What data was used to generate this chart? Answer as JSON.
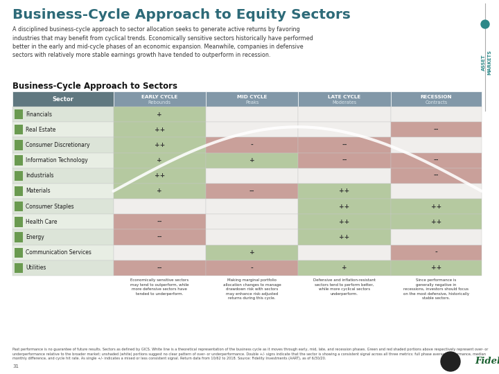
{
  "title": "Business-Cycle Approach to Equity Sectors",
  "subtitle": "A disciplined business-cycle approach to sector allocation seeks to generate active returns by favoring\nindustries that may benefit from cyclical trends. Economically sensitive sectors historically have performed\nbetter in the early and mid-cycle phases of an economic expansion. Meanwhile, companies in defensive\nsectors with relatively more stable earnings growth have tended to outperform in recession.",
  "table_title": "Business-Cycle Approach to Sectors",
  "col_headers_top": [
    "EARLY CYCLE",
    "MID CYCLE",
    "LATE CYCLE",
    "RECESSION"
  ],
  "col_headers_bot": [
    "Rebounds",
    "Peaks",
    "Moderates",
    "Contracts"
  ],
  "row_labels": [
    "Financials",
    "Real Estate",
    "Consumer Discretionary",
    "Information Technology",
    "Industrials",
    "Materials",
    "Consumer Staples",
    "Health Care",
    "Energy",
    "Communication Services",
    "Utilities"
  ],
  "data": [
    [
      "+",
      "",
      "",
      ""
    ],
    [
      "++",
      "",
      "",
      "--"
    ],
    [
      "++",
      "-",
      "--",
      ""
    ],
    [
      "+",
      "+",
      "--",
      "--"
    ],
    [
      "++",
      "",
      "",
      "--"
    ],
    [
      "+",
      "--",
      "++",
      ""
    ],
    [
      "",
      "",
      "++",
      "++"
    ],
    [
      "--",
      "",
      "++",
      "++"
    ],
    [
      "--",
      "",
      "++",
      ""
    ],
    [
      "",
      "+",
      "",
      "-"
    ],
    [
      "--",
      "-",
      "+",
      "++"
    ]
  ],
  "cell_colors": [
    [
      "green",
      "white",
      "white",
      "white"
    ],
    [
      "green",
      "white",
      "white",
      "red"
    ],
    [
      "green",
      "red",
      "red",
      "white"
    ],
    [
      "green",
      "green",
      "red",
      "red"
    ],
    [
      "green",
      "white",
      "white",
      "red"
    ],
    [
      "green",
      "red",
      "green",
      "white"
    ],
    [
      "white",
      "white",
      "green",
      "green"
    ],
    [
      "red",
      "white",
      "green",
      "green"
    ],
    [
      "red",
      "white",
      "green",
      "white"
    ],
    [
      "white",
      "green",
      "white",
      "red"
    ],
    [
      "red",
      "red",
      "green",
      "green"
    ]
  ],
  "col_notes": [
    "Economically sensitive sectors\nmay tend to outperform, while\nmore defensive sectors have\ntended to underperform.",
    "Making marginal portfolio\nallocation changes to manage\ndrawdown risk with sectors\nmay enhance risk-adjusted\nreturns during this cycle.",
    "Defensive and inflation-resistant\nsectors tend to perform better,\nwhile more cyclical sectors\nunderperform.",
    "Since performance is\ngenerally negative in\nrecessions, investors should focus\non the most defensive, historically\nstable sectors."
  ],
  "color_green": "#b5c9a0",
  "color_red": "#c9a09a",
  "color_white": "#f0eeec",
  "color_header_bg": "#8298a8",
  "color_sector_bg": "#607880",
  "color_sector_row": "#dde5d8",
  "icon_color": "#6a9a50",
  "footer_text": "Past performance is no guarantee of future results. Sectors as defined by GICS. White line is a theoretical representation of the business cycle as it moves through early, mid, late, and recession phases. Green and red shaded portions above respectively represent over- or underperformance relative to the broader market; unshaded (white) portions suggest no clear pattern of over- or underperformance. Double +/- signs indicate that the sector is showing a consistent signal across all three metrics: full phase average performance, median monthly difference, and cycle hit rate. As single +/- indicates a mixed or less consistent signal. Return data from 10/62 to 2018. Source: Fidelity Investments (AART), as of 6/30/20.",
  "page_num": "31",
  "title_color": "#2d6a78",
  "side_label_color": "#2d8888"
}
